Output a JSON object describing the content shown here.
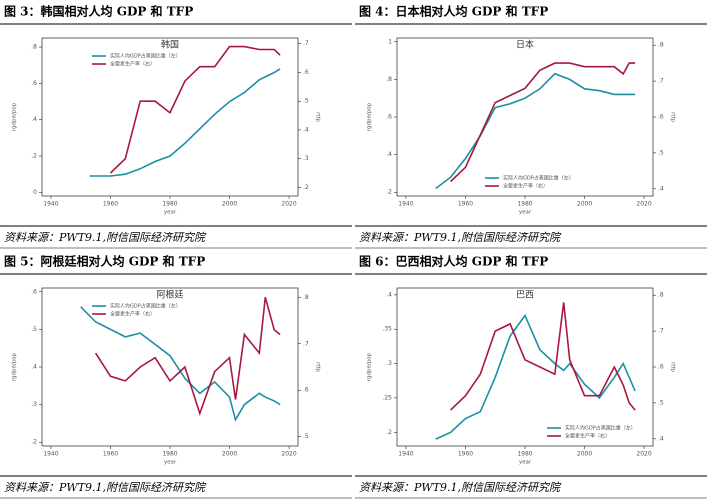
{
  "chart_data": [
    {
      "type": "line",
      "heading": "图 3：韩国相对人均 GDP 和 TFP",
      "title": "韩国",
      "source": "资料来源：PWT9.1,附信国际经济研究院",
      "xlabel": "year",
      "ylabel": "rgdpe/pop",
      "y2label": "rtfp",
      "legend": "upper left",
      "x": [
        1953,
        1955,
        1960,
        1965,
        1970,
        1975,
        1980,
        1985,
        1990,
        1995,
        2000,
        2005,
        2010,
        2015,
        2017
      ],
      "xlim": [
        1937,
        2023
      ],
      "xticks": [
        1940,
        1960,
        1980,
        2000,
        2020
      ],
      "ylim": [
        -0.02,
        0.85
      ],
      "yticks": [
        {
          "value": 0,
          "label": "0"
        },
        {
          "value": 0.2,
          "label": ".2"
        },
        {
          "value": 0.4,
          "label": ".4"
        },
        {
          "value": 0.6,
          "label": ".6"
        },
        {
          "value": 0.8,
          "label": ".8"
        }
      ],
      "y2lim": [
        0.17,
        0.72
      ],
      "y2ticks": [
        {
          "value": 0.2,
          "label": ".2"
        },
        {
          "value": 0.3,
          "label": ".3"
        },
        {
          "value": 0.4,
          "label": ".4"
        },
        {
          "value": 0.5,
          "label": ".5"
        },
        {
          "value": 0.6,
          "label": ".6"
        },
        {
          "value": 0.7,
          "label": ".7"
        }
      ],
      "series": [
        {
          "name": "实际人均GDP占美国比重（左）",
          "color": "#1b8fa3",
          "values": [
            0.09,
            0.09,
            0.09,
            0.1,
            0.13,
            0.17,
            0.2,
            0.27,
            0.35,
            0.43,
            0.5,
            0.55,
            0.62,
            0.66,
            0.68
          ]
        },
        {
          "name": "全要素生产率（右）",
          "color": "#a8173f",
          "axis": "y2",
          "values": [
            null,
            null,
            0.25,
            0.3,
            0.5,
            0.5,
            0.46,
            0.57,
            0.62,
            0.62,
            0.69,
            0.69,
            0.68,
            0.68,
            0.66
          ]
        }
      ]
    },
    {
      "type": "line",
      "heading": "图 4：日本相对人均 GDP 和 TFP",
      "title": "日本",
      "source": "资料来源：PWT9.1,附信国际经济研究院",
      "xlabel": "year",
      "ylabel": "rgdpe/pop",
      "y2label": "rtfp",
      "legend": "lower center",
      "x": [
        1950,
        1955,
        1960,
        1965,
        1970,
        1975,
        1980,
        1985,
        1990,
        1995,
        2000,
        2005,
        2010,
        2013,
        2015,
        2017
      ],
      "xlim": [
        1937,
        2023
      ],
      "xticks": [
        1940,
        1960,
        1980,
        2000,
        2020
      ],
      "ylim": [
        0.18,
        1.02
      ],
      "yticks": [
        {
          "value": 0.2,
          "label": ".2"
        },
        {
          "value": 0.4,
          "label": ".4"
        },
        {
          "value": 0.6,
          "label": ".6"
        },
        {
          "value": 0.8,
          "label": ".8"
        },
        1
      ],
      "y2lim": [
        0.38,
        0.82
      ],
      "y2ticks": [
        {
          "value": 0.4,
          "label": ".4"
        },
        {
          "value": 0.5,
          "label": ".5"
        },
        {
          "value": 0.6,
          "label": ".6"
        },
        {
          "value": 0.7,
          "label": ".7"
        },
        {
          "value": 0.8,
          "label": ".8"
        }
      ],
      "series": [
        {
          "name": "实际人均GDP占美国比重（左）",
          "color": "#1b8fa3",
          "values": [
            0.22,
            0.28,
            0.38,
            0.5,
            0.65,
            0.67,
            0.7,
            0.75,
            0.83,
            0.8,
            0.75,
            0.74,
            0.72,
            0.72,
            0.72,
            0.72
          ]
        },
        {
          "name": "全要素生产率（右）",
          "color": "#a8173f",
          "axis": "y2",
          "values": [
            null,
            0.42,
            0.46,
            0.55,
            0.64,
            0.66,
            0.68,
            0.73,
            0.75,
            0.75,
            0.74,
            0.74,
            0.74,
            0.72,
            0.75,
            0.75
          ]
        }
      ]
    },
    {
      "type": "line",
      "heading": "图 5：阿根廷相对人均 GDP 和 TFP",
      "title": "阿根廷",
      "source": "资料来源：PWT9.1,附信国际经济研究院",
      "xlabel": "year",
      "ylabel": "rgdpe/pop",
      "y2label": "rtfp",
      "legend": "upper left",
      "x": [
        1950,
        1955,
        1960,
        1965,
        1970,
        1975,
        1980,
        1985,
        1990,
        1995,
        2000,
        2002,
        2005,
        2010,
        2012,
        2015,
        2017
      ],
      "xlim": [
        1937,
        2023
      ],
      "xticks": [
        1940,
        1960,
        1980,
        2000,
        2020
      ],
      "ylim": [
        0.19,
        0.61
      ],
      "yticks": [
        {
          "value": 0.2,
          "label": ".2"
        },
        {
          "value": 0.3,
          "label": ".3"
        },
        {
          "value": 0.4,
          "label": ".4"
        },
        {
          "value": 0.5,
          "label": ".5"
        },
        {
          "value": 0.6,
          "label": ".6"
        }
      ],
      "y2lim": [
        0.48,
        0.82
      ],
      "y2ticks": [
        {
          "value": 0.5,
          "label": ".5"
        },
        {
          "value": 0.6,
          "label": ".6"
        },
        {
          "value": 0.7,
          "label": ".7"
        },
        {
          "value": 0.8,
          "label": ".8"
        }
      ],
      "series": [
        {
          "name": "实际人均GDP占美国比重（左）",
          "color": "#1b8fa3",
          "values": [
            0.56,
            0.52,
            0.5,
            0.48,
            0.49,
            0.46,
            0.43,
            0.37,
            0.33,
            0.36,
            0.32,
            0.26,
            0.3,
            0.33,
            0.32,
            0.31,
            0.3
          ]
        },
        {
          "name": "全要素生产率（右）",
          "color": "#a8173f",
          "axis": "y2",
          "values": [
            null,
            0.68,
            0.63,
            0.62,
            0.65,
            0.67,
            0.62,
            0.65,
            0.55,
            0.64,
            0.67,
            0.58,
            0.72,
            0.68,
            0.8,
            0.73,
            0.72
          ]
        }
      ]
    },
    {
      "type": "line",
      "heading": "图 6：巴西相对人均 GDP 和 TFP",
      "title": "巴西",
      "source": "资料来源：PWT9.1,附信国际经济研究院",
      "xlabel": "year",
      "ylabel": "rgdpe/pop",
      "y2label": "rtfp",
      "legend": "lower right",
      "x": [
        1950,
        1955,
        1960,
        1965,
        1970,
        1975,
        1980,
        1985,
        1990,
        1993,
        1995,
        2000,
        2005,
        2010,
        2013,
        2015,
        2017
      ],
      "xlim": [
        1937,
        2023
      ],
      "xticks": [
        1940,
        1960,
        1980,
        2000,
        2020
      ],
      "ylim": [
        0.18,
        0.41
      ],
      "yticks": [
        {
          "value": 0.2,
          "label": ".2"
        },
        {
          "value": 0.25,
          "label": ".25"
        },
        {
          "value": 0.3,
          "label": ".3"
        },
        {
          "value": 0.35,
          "label": ".35"
        },
        {
          "value": 0.4,
          "label": ".4"
        }
      ],
      "y2lim": [
        0.38,
        0.82
      ],
      "y2ticks": [
        {
          "value": 0.4,
          "label": ".4"
        },
        {
          "value": 0.5,
          "label": ".5"
        },
        {
          "value": 0.6,
          "label": ".6"
        },
        {
          "value": 0.7,
          "label": ".7"
        },
        {
          "value": 0.8,
          "label": ".8"
        }
      ],
      "series": [
        {
          "name": "实际人均GDP占美国比重（左）",
          "color": "#1b8fa3",
          "values": [
            0.19,
            0.2,
            0.22,
            0.23,
            0.28,
            0.34,
            0.37,
            0.32,
            0.3,
            0.29,
            0.3,
            0.27,
            0.25,
            0.28,
            0.3,
            0.28,
            0.26
          ]
        },
        {
          "name": "全要素生产率（右）",
          "color": "#a8173f",
          "axis": "y2",
          "values": [
            null,
            0.48,
            0.52,
            0.58,
            0.7,
            0.72,
            0.62,
            0.6,
            0.58,
            0.78,
            0.62,
            0.52,
            0.52,
            0.6,
            0.55,
            0.5,
            0.48
          ]
        }
      ]
    }
  ]
}
